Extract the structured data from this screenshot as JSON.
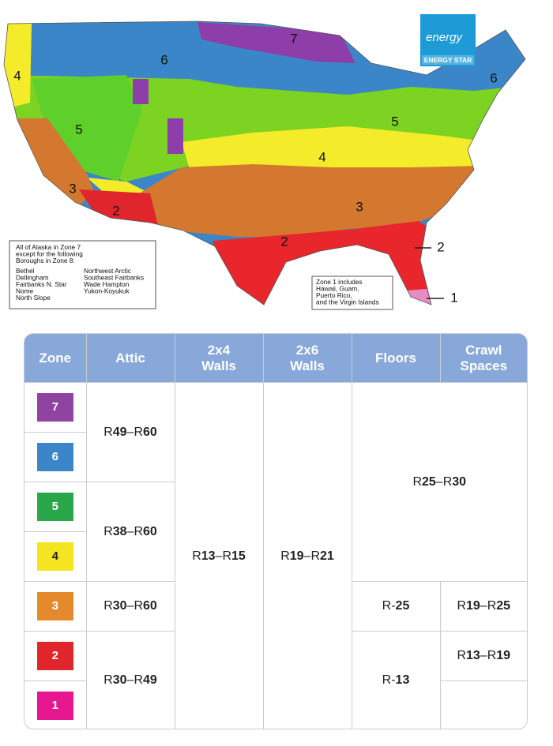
{
  "map": {
    "zone_labels": [
      {
        "text": "7"
      },
      {
        "text": "6"
      },
      {
        "text": "4"
      },
      {
        "text": "5"
      },
      {
        "text": "5"
      },
      {
        "text": "4"
      },
      {
        "text": "3"
      },
      {
        "text": "3"
      },
      {
        "text": "2"
      },
      {
        "text": "2"
      },
      {
        "text": "6"
      },
      {
        "text": "2"
      },
      {
        "text": "1"
      }
    ],
    "logo": {
      "script": "energy",
      "name": "ENERGY STAR"
    },
    "alaska_note": {
      "lines": [
        "All of Alaska in Zone 7",
        "except for the following",
        "Boroughs in Zone 8:"
      ],
      "boroughs_left": [
        "Bethel",
        "Dellingham",
        "Fairbanks N. Star",
        "Nome",
        "North Slope"
      ],
      "boroughs_right": [
        "Northwest Arctic",
        "Southeast Fairbanks",
        "Wade Hampton",
        "Yukon-Koyukuk"
      ]
    },
    "zone1_note": [
      "Zone 1 includes",
      "Hawaii, Guam,",
      "Puerto Rico,",
      "and the Virgin Islands"
    ]
  },
  "table": {
    "headers": [
      "Zone",
      "Attic",
      "2x4 Walls",
      "2x6 Walls",
      "Floors",
      "Crawl Spaces"
    ],
    "zones": [
      "7",
      "6",
      "5",
      "4",
      "3",
      "2",
      "1"
    ],
    "attic": [
      "R49–R60",
      "R38–R60",
      "R30–R60",
      "R30–R49"
    ],
    "walls_2x4": "R13–R15",
    "walls_2x6": "R19–R21",
    "floors_and_crawl_spaces": "R25–R30",
    "floors": [
      "R-25",
      "R-13"
    ],
    "crawl_spaces": [
      "R19–R25",
      "R13–R19"
    ]
  }
}
